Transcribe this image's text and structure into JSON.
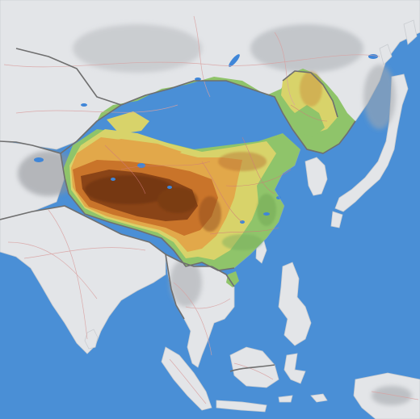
{
  "map": {
    "kind": "physical relief map",
    "region_focus": "China",
    "labels": [],
    "colors": {
      "ocean": "#4a8fd6",
      "neighbor_land": "#e3e5e8",
      "neighbor_land_shade": "#c9ccd0",
      "elevation_low": "#8fc46a",
      "elevation_mid_low": "#d8d36a",
      "elevation_mid": "#e2a84a",
      "elevation_high": "#c9742a",
      "elevation_very_high": "#8a4417",
      "lakes": "#3f86d8",
      "admin_boundaries": "#d07a7a",
      "country_boundaries": "#6f6f6f",
      "roads": "#d9a0a0"
    }
  }
}
